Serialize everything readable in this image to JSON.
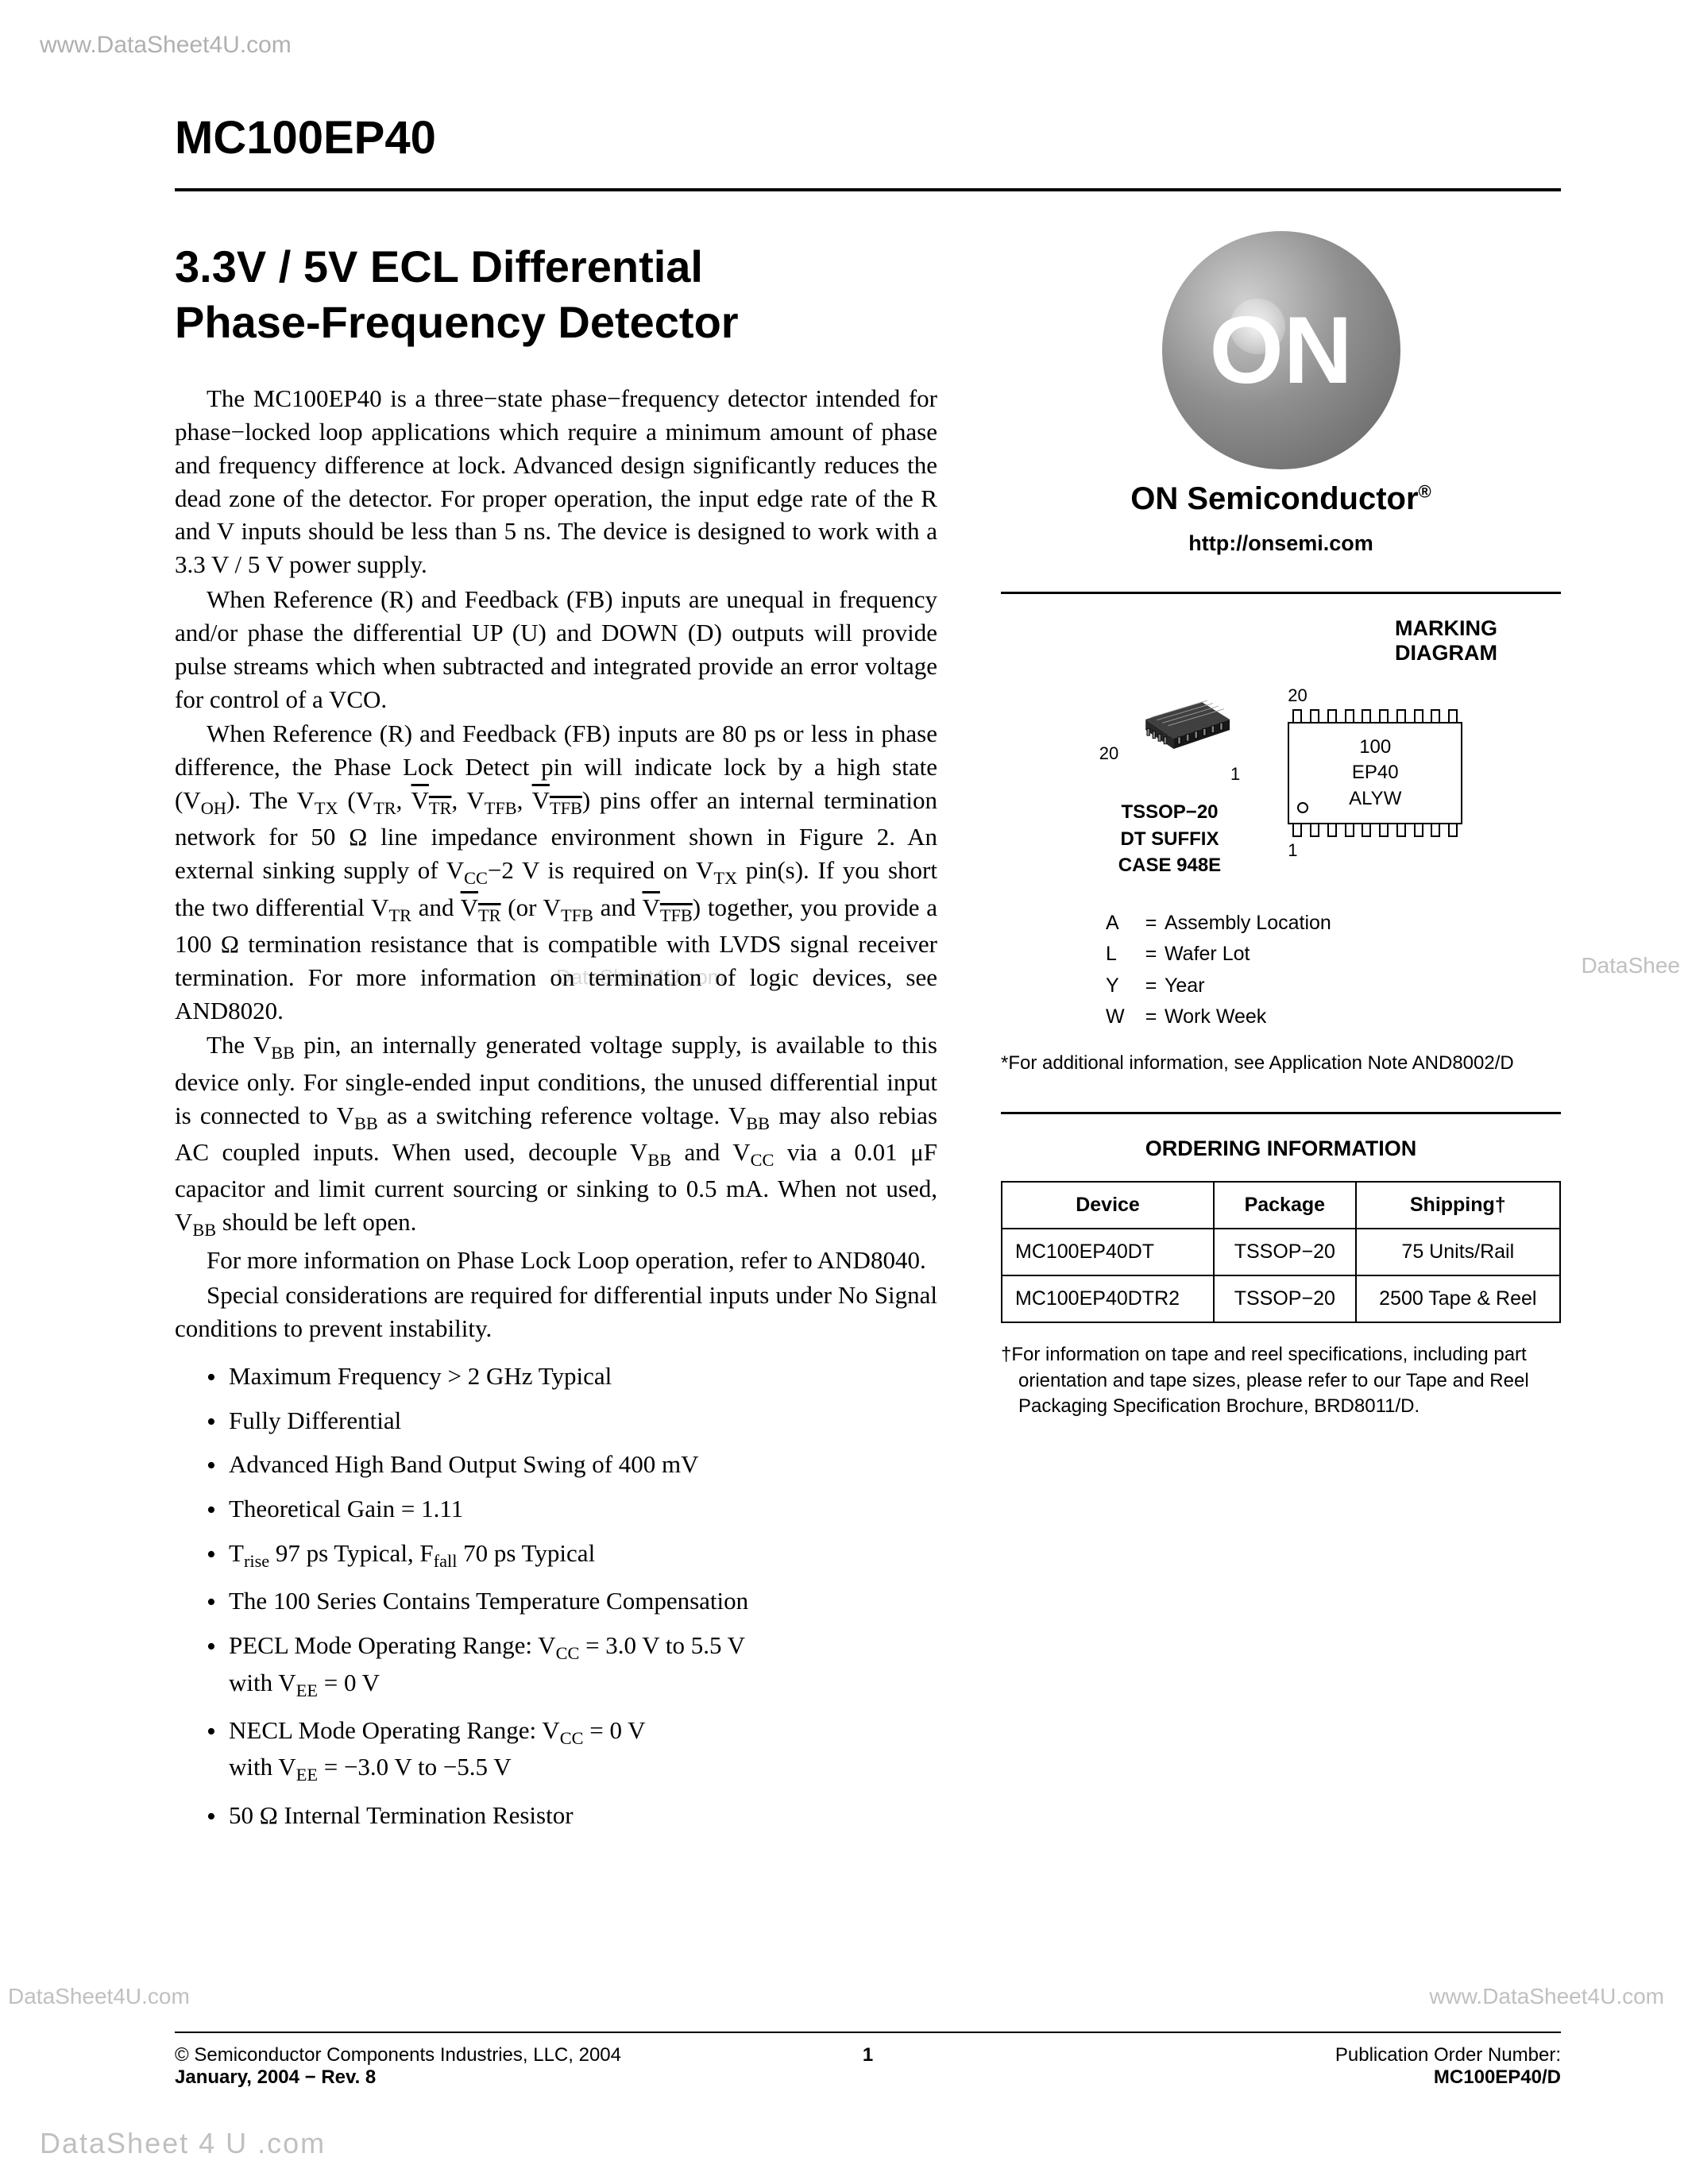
{
  "watermarks": {
    "top": "www.DataSheet4U.com",
    "right": "DataShee",
    "bottom_left": "DataSheet4U.com",
    "bottom_right": "www.DataSheet4U.com",
    "footer": "DataSheet 4 U .com",
    "center": "DataSheet4U.com"
  },
  "header": {
    "part_number": "MC100EP40",
    "title_line1": "3.3V / 5V ECL Differential",
    "title_line2": "Phase-Frequency Detector"
  },
  "paragraphs": {
    "p1": "The MC100EP40 is a three−state phase−frequency detector intended for phase−locked loop applications which require a minimum amount of phase and frequency difference at lock. Advanced design significantly reduces the dead zone of the detector. For proper operation, the input edge rate of the R and V inputs should be less than 5 ns. The device is designed to work with a 3.3 V / 5 V power supply.",
    "p2": "When Reference (R) and Feedback (FB) inputs are unequal in frequency and/or phase the differential UP (U) and DOWN (D) outputs will provide pulse streams which when subtracted and integrated provide an error voltage for control of a VCO.",
    "p5": "For more information on Phase Lock Loop operation, refer to AND8040.",
    "p6": "Special considerations are required for differential inputs under No Signal conditions to prevent instability."
  },
  "bullets": [
    "Maximum Frequency > 2 GHz Typical",
    "Fully Differential",
    "Advanced High Band Output Swing of 400 mV",
    "Theoretical Gain = 1.11",
    "T<sub>rise</sub> 97 ps Typical, F<sub>fall</sub> 70 ps Typical",
    "The 100 Series Contains Temperature Compensation",
    "PECL Mode Operating Range: V<sub>CC</sub> = 3.0 V to 5.5 V<br>with V<sub>EE</sub> = 0 V",
    "NECL Mode Operating Range: V<sub>CC</sub> = 0 V<br>with V<sub>EE</sub> = −3.0 V to −5.5 V",
    "50 Ω Internal Termination Resistor"
  ],
  "logo": {
    "company": "ON Semiconductor",
    "url": "http://onsemi.com",
    "logo_text": "ON"
  },
  "marking": {
    "heading": "MARKING<br>DIAGRAM",
    "pin20": "20",
    "pin1": "1",
    "pkg_lines": [
      "TSSOP−20",
      "DT SUFFIX",
      "CASE 948E"
    ],
    "outline_lines": [
      "100",
      "EP40",
      "ALYW"
    ],
    "legend": [
      [
        "A",
        "=",
        "Assembly Location"
      ],
      [
        "L",
        "=",
        "Wafer Lot"
      ],
      [
        "Y",
        "=",
        "Year"
      ],
      [
        "W",
        "=",
        "Work Week"
      ]
    ],
    "footnote": "*For additional information, see Application Note AND8002/D"
  },
  "ordering": {
    "heading": "ORDERING INFORMATION",
    "columns": [
      "Device",
      "Package",
      "Shipping†"
    ],
    "rows": [
      [
        "MC100EP40DT",
        "TSSOP−20",
        "75 Units/Rail"
      ],
      [
        "MC100EP40DTR2",
        "TSSOP−20",
        "2500 Tape & Reel"
      ]
    ],
    "note": "†For information on tape and reel specifications, including part orientation and tape sizes, please refer to our Tape and Reel Packaging Specification Brochure, BRD8011/D."
  },
  "footer": {
    "copyright": "©   Semiconductor Components Industries, LLC, 2004",
    "date_rev": "January, 2004 − Rev. 8",
    "page": "1",
    "pub_label": "Publication Order Number:",
    "pub_number": "MC100EP40/D"
  }
}
